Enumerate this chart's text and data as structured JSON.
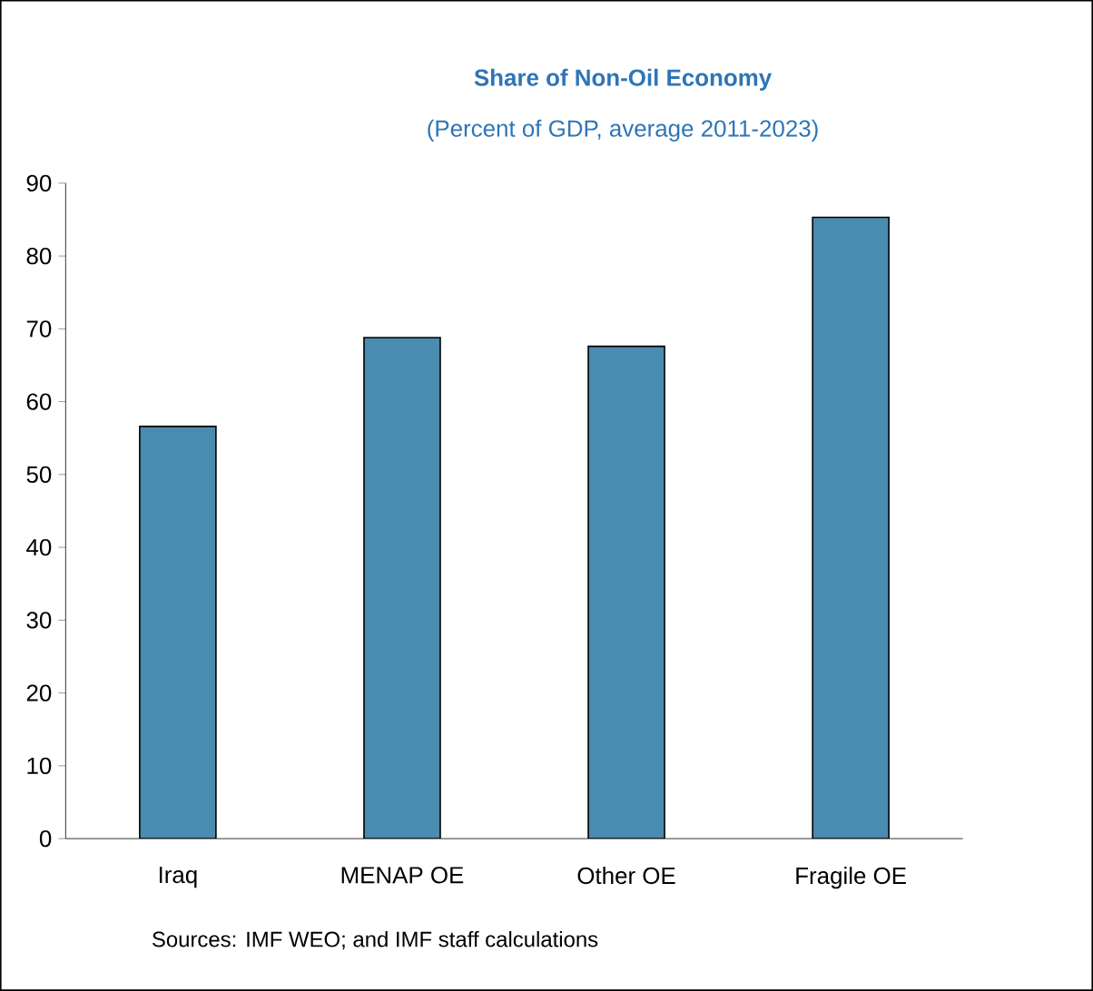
{
  "chart_data": {
    "type": "bar",
    "title": "Share of Non-Oil Economy",
    "subtitle": "(Percent of GDP, average 2011-2023)",
    "categories": [
      "Iraq",
      "MENAP OE",
      "Other OE",
      "Fragile OE"
    ],
    "values": [
      56.6,
      68.8,
      67.6,
      85.3
    ],
    "color": "#4a8bb0",
    "ylim": [
      0,
      90
    ],
    "yticks": [
      0,
      10,
      20,
      30,
      40,
      50,
      60,
      70,
      80,
      90
    ],
    "annotations": [
      "Sources: IMF WEO; and IMF staff calculations"
    ]
  }
}
